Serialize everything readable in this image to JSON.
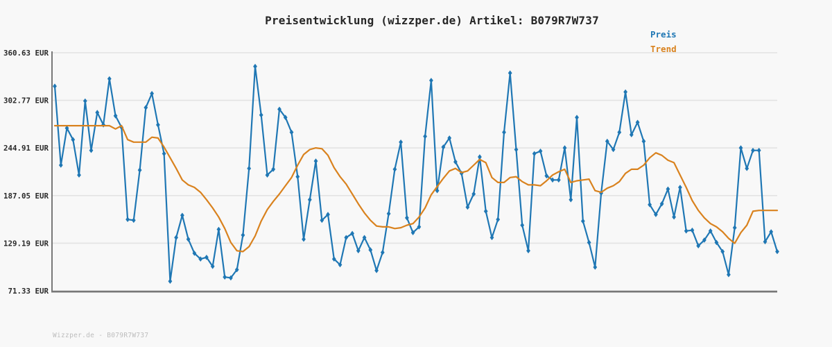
{
  "title": "Preisentwicklung (wizzper.de) Artikel: B079R7W737",
  "watermark": "Wizzper.de - B079R7W737",
  "legend": [
    {
      "label": "Preis",
      "color": "#1f77b4"
    },
    {
      "label": "Trend",
      "color": "#d9821e"
    }
  ],
  "chart_data": {
    "type": "line",
    "title": "Preisentwicklung (wizzper.de) Artikel: B079R7W737",
    "unit": "EUR",
    "ylim": [
      71.33,
      360.63
    ],
    "grid": "horizontal",
    "grid_color": "#e3e3e3",
    "axis_color": "#787878",
    "plot_bg": "#f8f8f8",
    "legend_position": "top-right",
    "x_tick_labels_visible": false,
    "y_ticks": [
      {
        "value": 360.63,
        "label": "360.63 EUR"
      },
      {
        "value": 302.77,
        "label": "302.77 EUR"
      },
      {
        "value": 244.91,
        "label": "244.91 EUR"
      },
      {
        "value": 187.05,
        "label": "187.05 EUR"
      },
      {
        "value": 129.19,
        "label": "129.19 EUR"
      },
      {
        "value": 71.33,
        "label": "71.33 EUR"
      }
    ],
    "series": [
      {
        "name": "Preis",
        "color": "#1f77b4",
        "marker": "diamond",
        "values": [
          320,
          224,
          269,
          255,
          212,
          302,
          242,
          288,
          273,
          329,
          284,
          270,
          158,
          157,
          218,
          294,
          311,
          273,
          238,
          83,
          136,
          163,
          134,
          117,
          110,
          112,
          101,
          146,
          88,
          87,
          97,
          139,
          220,
          344,
          285,
          212,
          219,
          292,
          282,
          264,
          210,
          134,
          182,
          229,
          157,
          164,
          110,
          103,
          136,
          141,
          120,
          136,
          121,
          96,
          118,
          165,
          219,
          252,
          160,
          142,
          149,
          259,
          327,
          193,
          246,
          257,
          228,
          214,
          173,
          189,
          234,
          168,
          136,
          158,
          264,
          336,
          243,
          151,
          120,
          238,
          241,
          211,
          206,
          206,
          245,
          182,
          282,
          156,
          130,
          100,
          190,
          253,
          243,
          264,
          313,
          261,
          276,
          253,
          176,
          164,
          177,
          195,
          161,
          197,
          144,
          145,
          126,
          133,
          144,
          130,
          119,
          91,
          148,
          245,
          220,
          242,
          242,
          131,
          143,
          119
        ]
      },
      {
        "name": "Trend",
        "color": "#d9821e",
        "marker": "none",
        "values": [
          272,
          272,
          272,
          272,
          272,
          272,
          272,
          272,
          272,
          272,
          268,
          272,
          255,
          252,
          252,
          252,
          258,
          257,
          246,
          233,
          220,
          206,
          200,
          197,
          191,
          182,
          172,
          161,
          147,
          130,
          120,
          119,
          125,
          138,
          156,
          170,
          180,
          189,
          199,
          209,
          224,
          237,
          243,
          245,
          244,
          236,
          221,
          210,
          201,
          189,
          177,
          166,
          157,
          150,
          149,
          149,
          147,
          148,
          151,
          153,
          161,
          172,
          188,
          198,
          208,
          217,
          220,
          215,
          217,
          224,
          231,
          227,
          209,
          203,
          203,
          209,
          210,
          204,
          200,
          200,
          199,
          205,
          212,
          216,
          219,
          203,
          205,
          206,
          207,
          193,
          191,
          196,
          199,
          204,
          214,
          219,
          219,
          224,
          233,
          239,
          236,
          230,
          227,
          212,
          197,
          181,
          169,
          160,
          153,
          149,
          143,
          135,
          129,
          142,
          151,
          168,
          169,
          169,
          169,
          169
        ]
      }
    ]
  }
}
